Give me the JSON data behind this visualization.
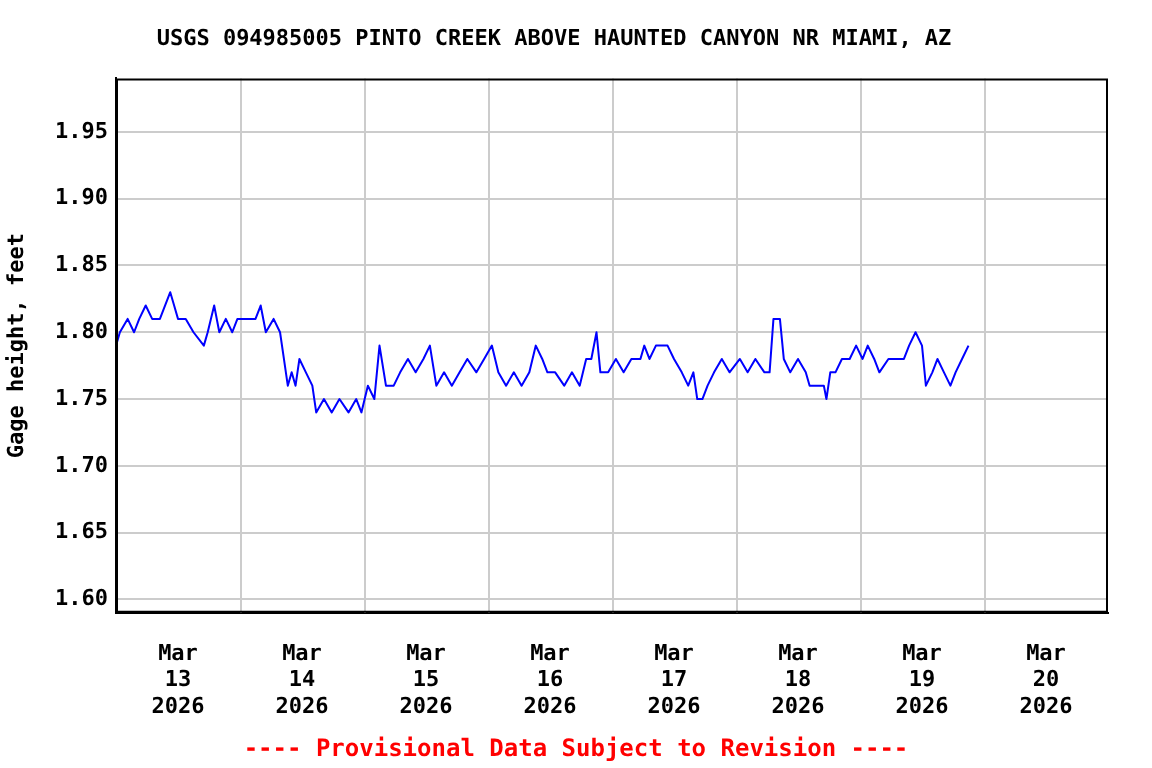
{
  "chart_data": {
    "type": "line",
    "title": "USGS 094985005 PINTO CREEK ABOVE HAUNTED CANYON NR MIAMI, AZ",
    "ylabel": "Gage height, feet",
    "annotations": [
      "---- Provisional Data Subject to Revision ----"
    ],
    "legend": false,
    "grid": true,
    "marker": "none",
    "line_style": "solid",
    "xlim": [
      "2026-03-13T00:00",
      "2026-03-21T00:00"
    ],
    "xticks": [
      {
        "value": "2026-03-13T12:00",
        "label": "Mar\n13\n2026"
      },
      {
        "value": "2026-03-14T12:00",
        "label": "Mar\n14\n2026"
      },
      {
        "value": "2026-03-15T12:00",
        "label": "Mar\n15\n2026"
      },
      {
        "value": "2026-03-16T12:00",
        "label": "Mar\n16\n2026"
      },
      {
        "value": "2026-03-17T12:00",
        "label": "Mar\n17\n2026"
      },
      {
        "value": "2026-03-18T12:00",
        "label": "Mar\n18\n2026"
      },
      {
        "value": "2026-03-19T12:00",
        "label": "Mar\n19\n2026"
      },
      {
        "value": "2026-03-20T12:00",
        "label": "Mar\n20\n2026"
      },
      {
        "value": "2026-03-14T00:00",
        "label": null
      },
      {
        "value": "2026-03-15T00:00",
        "label": null
      },
      {
        "value": "2026-03-16T00:00",
        "label": null
      },
      {
        "value": "2026-03-17T00:00",
        "label": null
      },
      {
        "value": "2026-03-18T00:00",
        "label": null
      },
      {
        "value": "2026-03-19T00:00",
        "label": null
      },
      {
        "value": "2026-03-20T00:00",
        "label": null
      }
    ],
    "ylim": [
      1.59,
      1.99
    ],
    "yticks": [
      {
        "value": 1.6,
        "label": "1.60"
      },
      {
        "value": 1.65,
        "label": "1.65"
      },
      {
        "value": 1.7,
        "label": "1.70"
      },
      {
        "value": 1.75,
        "label": "1.75"
      },
      {
        "value": 1.8,
        "label": "1.80"
      },
      {
        "value": 1.85,
        "label": "1.85"
      },
      {
        "value": 1.9,
        "label": "1.90"
      },
      {
        "value": 1.95,
        "label": "1.95"
      }
    ],
    "series": [
      {
        "color": "#0000ff",
        "x": [
          "2026-03-13T00:00",
          "2026-03-13T00:45",
          "2026-03-13T02:15",
          "2026-03-13T03:30",
          "2026-03-13T04:30",
          "2026-03-13T05:45",
          "2026-03-13T07:00",
          "2026-03-13T08:30",
          "2026-03-13T10:30",
          "2026-03-13T11:15",
          "2026-03-13T12:00",
          "2026-03-13T13:30",
          "2026-03-13T15:00",
          "2026-03-13T17:00",
          "2026-03-13T17:45",
          "2026-03-13T19:00",
          "2026-03-13T20:00",
          "2026-03-13T21:15",
          "2026-03-13T22:30",
          "2026-03-13T23:30",
          "2026-03-14T01:30",
          "2026-03-14T03:00",
          "2026-03-14T04:00",
          "2026-03-14T05:00",
          "2026-03-14T06:30",
          "2026-03-14T07:45",
          "2026-03-14T08:30",
          "2026-03-14T09:15",
          "2026-03-14T10:00",
          "2026-03-14T10:45",
          "2026-03-14T11:30",
          "2026-03-14T12:45",
          "2026-03-14T14:00",
          "2026-03-14T14:45",
          "2026-03-14T16:15",
          "2026-03-14T17:45",
          "2026-03-14T19:15",
          "2026-03-14T21:00",
          "2026-03-14T22:30",
          "2026-03-14T23:30",
          "2026-03-15T00:45",
          "2026-03-15T02:00",
          "2026-03-15T03:00",
          "2026-03-15T04:15",
          "2026-03-15T05:45",
          "2026-03-15T07:00",
          "2026-03-15T08:30",
          "2026-03-15T10:00",
          "2026-03-15T11:30",
          "2026-03-15T12:45",
          "2026-03-15T14:00",
          "2026-03-15T15:30",
          "2026-03-15T17:00",
          "2026-03-15T18:30",
          "2026-03-15T20:00",
          "2026-03-15T21:45",
          "2026-03-15T23:15",
          "2026-03-16T00:45",
          "2026-03-16T02:00",
          "2026-03-16T03:30",
          "2026-03-16T05:00",
          "2026-03-16T06:30",
          "2026-03-16T08:00",
          "2026-03-16T09:15",
          "2026-03-16T10:30",
          "2026-03-16T11:30",
          "2026-03-16T13:00",
          "2026-03-16T14:45",
          "2026-03-16T16:15",
          "2026-03-16T17:45",
          "2026-03-16T19:00",
          "2026-03-16T20:00",
          "2026-03-16T21:00",
          "2026-03-16T21:45",
          "2026-03-16T23:15",
          "2026-03-17T00:45",
          "2026-03-17T02:15",
          "2026-03-17T03:45",
          "2026-03-17T05:30",
          "2026-03-17T06:15",
          "2026-03-17T07:15",
          "2026-03-17T08:30",
          "2026-03-17T10:45",
          "2026-03-17T12:00",
          "2026-03-17T13:30",
          "2026-03-17T14:45",
          "2026-03-17T15:45",
          "2026-03-17T16:30",
          "2026-03-17T17:30",
          "2026-03-17T18:30",
          "2026-03-17T19:45",
          "2026-03-17T21:15",
          "2026-03-17T22:45",
          "2026-03-18T00:45",
          "2026-03-18T02:15",
          "2026-03-18T03:45",
          "2026-03-18T05:30",
          "2026-03-18T06:30",
          "2026-03-18T07:15",
          "2026-03-18T08:30",
          "2026-03-18T09:15",
          "2026-03-18T10:30",
          "2026-03-18T12:00",
          "2026-03-18T13:30",
          "2026-03-18T14:15",
          "2026-03-18T15:45",
          "2026-03-18T17:00",
          "2026-03-18T17:30",
          "2026-03-18T18:15",
          "2026-03-18T19:15",
          "2026-03-18T20:30",
          "2026-03-18T22:00",
          "2026-03-18T23:15",
          "2026-03-19T00:30",
          "2026-03-19T01:30",
          "2026-03-19T02:45",
          "2026-03-19T03:45",
          "2026-03-19T05:30",
          "2026-03-19T07:00",
          "2026-03-19T08:30",
          "2026-03-19T09:30",
          "2026-03-19T10:45",
          "2026-03-19T12:00",
          "2026-03-19T12:45",
          "2026-03-19T14:00",
          "2026-03-19T15:00",
          "2026-03-19T16:15",
          "2026-03-19T17:30",
          "2026-03-19T18:30",
          "2026-03-19T19:45",
          "2026-03-19T21:00"
        ],
        "values": [
          1.79,
          1.8,
          1.81,
          1.8,
          1.81,
          1.82,
          1.81,
          1.81,
          1.83,
          1.82,
          1.81,
          1.81,
          1.8,
          1.79,
          1.8,
          1.82,
          1.8,
          1.81,
          1.8,
          1.81,
          1.81,
          1.81,
          1.82,
          1.8,
          1.81,
          1.8,
          1.78,
          1.76,
          1.77,
          1.76,
          1.78,
          1.77,
          1.76,
          1.74,
          1.75,
          1.74,
          1.75,
          1.74,
          1.75,
          1.74,
          1.76,
          1.75,
          1.79,
          1.76,
          1.76,
          1.77,
          1.78,
          1.77,
          1.78,
          1.79,
          1.76,
          1.77,
          1.76,
          1.77,
          1.78,
          1.77,
          1.78,
          1.79,
          1.77,
          1.76,
          1.77,
          1.76,
          1.77,
          1.79,
          1.78,
          1.77,
          1.77,
          1.76,
          1.77,
          1.76,
          1.78,
          1.78,
          1.8,
          1.77,
          1.77,
          1.78,
          1.77,
          1.78,
          1.78,
          1.79,
          1.78,
          1.79,
          1.79,
          1.78,
          1.77,
          1.76,
          1.77,
          1.75,
          1.75,
          1.76,
          1.77,
          1.78,
          1.77,
          1.78,
          1.77,
          1.78,
          1.77,
          1.77,
          1.81,
          1.81,
          1.78,
          1.77,
          1.78,
          1.77,
          1.76,
          1.76,
          1.76,
          1.75,
          1.77,
          1.77,
          1.78,
          1.78,
          1.79,
          1.78,
          1.79,
          1.78,
          1.77,
          1.78,
          1.78,
          1.78,
          1.79,
          1.8,
          1.79,
          1.76,
          1.77,
          1.78,
          1.77,
          1.76,
          1.77,
          1.78,
          1.79
        ]
      }
    ]
  }
}
